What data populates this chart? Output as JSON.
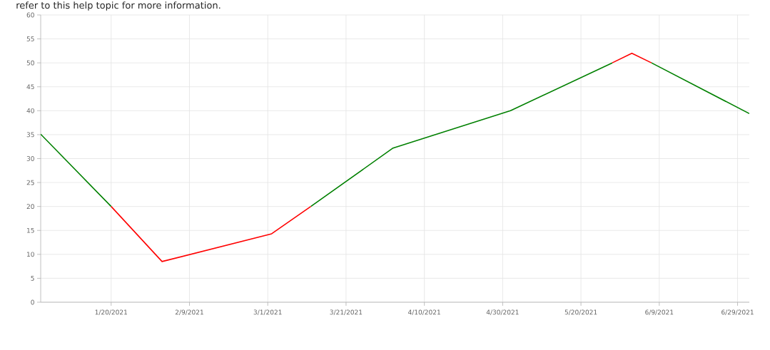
{
  "chart_data": {
    "type": "line",
    "annotations": [
      "refer to this help topic for more information."
    ],
    "xlim": [
      "2021-01-02",
      "2021-07-02"
    ],
    "xticks": [
      {
        "value": "2021-01-20",
        "label": "1/20/2021"
      },
      {
        "value": "2021-02-09",
        "label": "2/9/2021"
      },
      {
        "value": "2021-03-01",
        "label": "3/1/2021"
      },
      {
        "value": "2021-03-21",
        "label": "3/21/2021"
      },
      {
        "value": "2021-04-10",
        "label": "4/10/2021"
      },
      {
        "value": "2021-04-30",
        "label": "4/30/2021"
      },
      {
        "value": "2021-05-20",
        "label": "5/20/2021"
      },
      {
        "value": "2021-06-09",
        "label": "6/9/2021"
      },
      {
        "value": "2021-06-29",
        "label": "6/29/2021"
      }
    ],
    "ylim": [
      0,
      60
    ],
    "yticks": [
      0,
      5,
      10,
      15,
      20,
      25,
      30,
      35,
      40,
      45,
      50,
      55,
      60
    ],
    "grid": true,
    "marker": "none",
    "line_style": "solid",
    "series": [
      {
        "color": "#008000",
        "x": [
          "2021-01-02",
          "2021-01-20",
          "2021-02-02",
          "2021-03-12",
          "2021-04-02",
          "2021-05-02",
          "2021-05-28",
          "2021-06-02",
          "2021-06-07",
          "2021-07-02"
        ],
        "values": [
          35.1,
          20,
          null,
          20,
          32.2,
          40,
          50,
          null,
          50,
          39.4
        ]
      },
      {
        "color": "#ff0000",
        "x": [
          "2021-01-20",
          "2021-02-02",
          "2021-03-02",
          "2021-03-12",
          "2021-04-02",
          "2021-05-28",
          "2021-06-02",
          "2021-06-07"
        ],
        "values": [
          20,
          8.5,
          14.3,
          20,
          null,
          50,
          52,
          50
        ]
      }
    ]
  }
}
